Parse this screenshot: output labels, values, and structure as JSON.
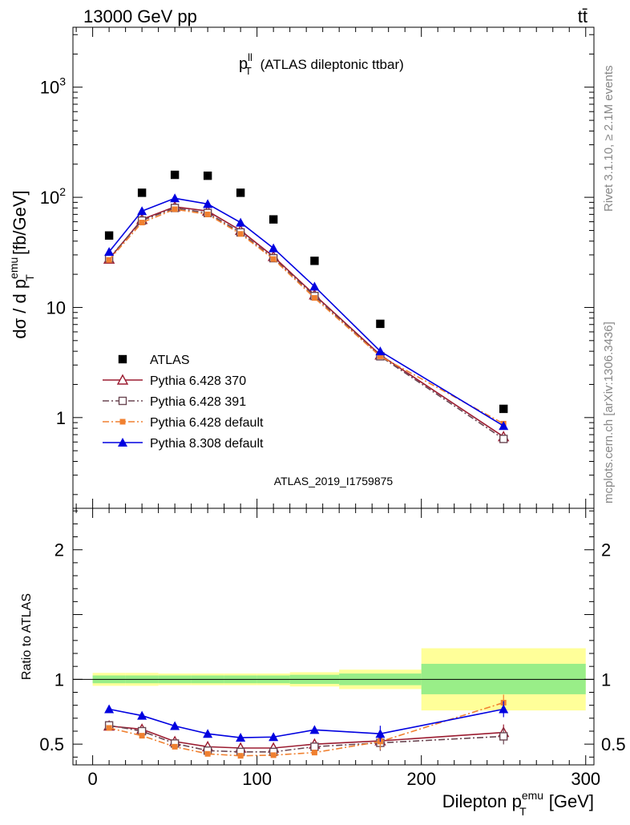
{
  "header": {
    "left": "13000 GeV pp",
    "right": "tt̄"
  },
  "side_labels": {
    "rivet": "Rivet 3.1.10, ≥ 2.1M events",
    "mcplots": "mcplots.cern.ch [arXiv:1306.3436]"
  },
  "chart_data": [
    {
      "type": "scatter",
      "panel": "main",
      "title": "p_T^ll (ATLAS dileptonic ttbar)",
      "title_parts": {
        "main": "p",
        "sup": "ll",
        "sub": "T",
        "rest": " (ATLAS dileptonic ttbar)"
      },
      "analysis_label": "ATLAS_2019_I1759875",
      "ylabel": "dσ / d p_T^emu [fb/GeV]",
      "ylabel_parts": {
        "pre": "dσ / d p",
        "sup": "emu",
        "sub": "T",
        "post": " [fb/GeV]"
      },
      "yscale": "log",
      "xlim": [
        -12,
        305
      ],
      "ylim": [
        0.15,
        3500
      ],
      "yticks": [
        {
          "value": 1000,
          "base": "10",
          "exp": "3"
        },
        {
          "value": 100,
          "base": "10",
          "exp": "2"
        },
        {
          "value": 10,
          "base": "10",
          "exp": ""
        },
        {
          "value": 1,
          "base": "1",
          "exp": ""
        }
      ],
      "legend_placement": "left",
      "x": [
        10,
        30,
        50,
        70,
        90,
        110,
        135,
        175,
        250
      ],
      "series": [
        {
          "name": "ATLAS",
          "color": "#000000",
          "marker": "square",
          "line": "none",
          "values": [
            45,
            110,
            160,
            157,
            110,
            63,
            26.5,
            7.1,
            1.2
          ]
        },
        {
          "name": "Pythia 6.428 370",
          "color": "#9b1b30",
          "marker": "triangle-open",
          "line": "solid",
          "values": [
            27.5,
            63,
            82,
            75,
            50,
            29,
            13,
            3.7,
            0.67
          ]
        },
        {
          "name": "Pythia 6.428 391",
          "color": "#6a4652",
          "marker": "square-open",
          "line": "dashdot",
          "values": [
            28,
            61.5,
            80,
            72,
            48,
            28,
            12.7,
            3.6,
            0.64
          ]
        },
        {
          "name": "Pythia 6.428 default",
          "color": "#f08030",
          "marker": "square-filled",
          "line": "dashdot",
          "values": [
            27,
            59,
            78,
            70,
            46.5,
            27.5,
            12.2,
            3.6,
            0.88
          ]
        },
        {
          "name": "Pythia 8.308 default",
          "color": "#0000e0",
          "marker": "triangle-filled",
          "line": "solid",
          "values": [
            32,
            75,
            98,
            87,
            59,
            34.5,
            15.5,
            4.0,
            0.84
          ]
        }
      ]
    },
    {
      "type": "line",
      "panel": "ratio",
      "ylabel": "Ratio to ATLAS",
      "xlabel": "Dilepton p_T^emu [GeV]",
      "xlabel_parts": {
        "pre": "Dilepton p",
        "sup": "emu",
        "sub": "T",
        "post": " [GeV]"
      },
      "xlim": [
        -12,
        305
      ],
      "ylim": [
        0.34,
        2.32
      ],
      "xticks": [
        0,
        100,
        200,
        300
      ],
      "yticks": [
        0.5,
        1,
        2
      ],
      "bins": [
        {
          "lo": 0,
          "hi": 20,
          "inner": [
            0.97,
            1.03
          ],
          "outer": [
            0.95,
            1.05
          ]
        },
        {
          "lo": 20,
          "hi": 40,
          "inner": [
            0.97,
            1.03
          ],
          "outer": [
            0.95,
            1.05
          ]
        },
        {
          "lo": 40,
          "hi": 60,
          "inner": [
            0.97,
            1.03
          ],
          "outer": [
            0.955,
            1.045
          ]
        },
        {
          "lo": 60,
          "hi": 80,
          "inner": [
            0.97,
            1.03
          ],
          "outer": [
            0.955,
            1.045
          ]
        },
        {
          "lo": 80,
          "hi": 100,
          "inner": [
            0.97,
            1.03
          ],
          "outer": [
            0.955,
            1.045
          ]
        },
        {
          "lo": 100,
          "hi": 120,
          "inner": [
            0.97,
            1.03
          ],
          "outer": [
            0.955,
            1.045
          ]
        },
        {
          "lo": 120,
          "hi": 150,
          "inner": [
            0.965,
            1.035
          ],
          "outer": [
            0.945,
            1.055
          ]
        },
        {
          "lo": 150,
          "hi": 200,
          "inner": [
            0.955,
            1.045
          ],
          "outer": [
            0.925,
            1.075
          ]
        },
        {
          "lo": 200,
          "hi": 300,
          "inner": [
            0.885,
            1.12
          ],
          "outer": [
            0.76,
            1.24
          ]
        }
      ],
      "x": [
        10,
        30,
        50,
        70,
        90,
        110,
        135,
        175,
        250
      ],
      "series": [
        {
          "name": "Pythia 6.428 370",
          "values": [
            0.64,
            0.615,
            0.52,
            0.48,
            0.47,
            0.47,
            0.5,
            0.525,
            0.59
          ]
        },
        {
          "name": "Pythia 6.428 391",
          "values": [
            0.645,
            0.6,
            0.505,
            0.45,
            0.44,
            0.44,
            0.48,
            0.51,
            0.56
          ]
        },
        {
          "name": "Pythia 6.428 default",
          "values": [
            0.625,
            0.565,
            0.48,
            0.425,
            0.41,
            0.415,
            0.435,
            0.52,
            0.82
          ]
        },
        {
          "name": "Pythia 8.308 default",
          "values": [
            0.77,
            0.72,
            0.64,
            0.58,
            0.55,
            0.555,
            0.61,
            0.58,
            0.77
          ]
        }
      ]
    }
  ]
}
